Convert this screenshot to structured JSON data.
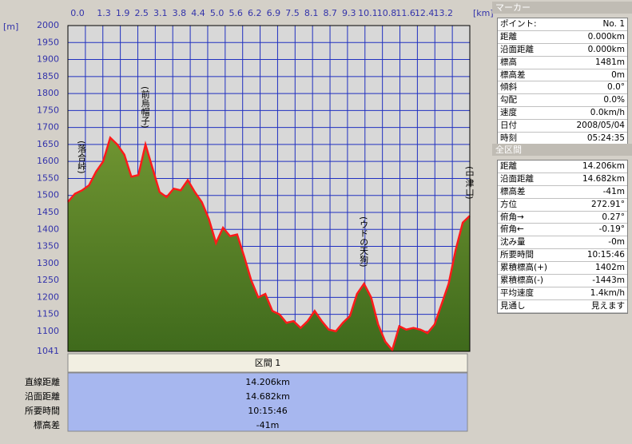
{
  "chart_data": {
    "type": "area",
    "y_unit": "[m]",
    "x_unit": "[km]",
    "x_labels": [
      "0.0",
      "1.3",
      "1.9",
      "2.5",
      "3.1",
      "3.8",
      "4.4",
      "5.0",
      "5.6",
      "6.2",
      "6.9",
      "7.5",
      "8.1",
      "8.7",
      "9.3",
      "10.1",
      "10.8",
      "11.6",
      "12.4",
      "13.2"
    ],
    "values": [
      1481,
      1505,
      1515,
      1530,
      1570,
      1600,
      1670,
      1650,
      1620,
      1555,
      1560,
      1650,
      1580,
      1510,
      1495,
      1520,
      1515,
      1545,
      1510,
      1480,
      1430,
      1360,
      1405,
      1380,
      1385,
      1320,
      1250,
      1200,
      1210,
      1160,
      1150,
      1125,
      1130,
      1110,
      1130,
      1160,
      1130,
      1105,
      1100,
      1125,
      1145,
      1210,
      1240,
      1200,
      1120,
      1070,
      1045,
      1115,
      1105,
      1110,
      1105,
      1095,
      1120,
      1180,
      1240,
      1340,
      1420,
      1440
    ],
    "ylim": [
      1041,
      2000
    ],
    "yticks": [
      2000,
      1950,
      1900,
      1850,
      1800,
      1750,
      1700,
      1650,
      1600,
      1550,
      1500,
      1450,
      1400,
      1350,
      1300,
      1250,
      1200,
      1150,
      1100,
      1041
    ],
    "grid": true,
    "color": "#6f9431",
    "line_color": "#ff1a1a",
    "annotations": [
      {
        "text": "(落合峠)",
        "index": 2
      },
      {
        "text": "(前烏帽子)",
        "index": 11
      },
      {
        "text": "(ウドの天狗)",
        "index": 42
      },
      {
        "text": "(中津山)",
        "index": 57
      }
    ]
  },
  "section": {
    "title": "区間 1",
    "rows": [
      [
        "直線距離",
        "14.206km"
      ],
      [
        "沿面距離",
        "14.682km"
      ],
      [
        "所要時間",
        "10:15:46"
      ],
      [
        "標高差",
        "-41m"
      ]
    ]
  },
  "marker": {
    "title": "マーカー",
    "rows": [
      [
        "ポイント:",
        "No. 1"
      ],
      [
        "距離",
        "0.000km"
      ],
      [
        "沿面距離",
        "0.000km"
      ],
      [
        "標高",
        "1481m"
      ],
      [
        "標高差",
        "0m"
      ],
      [
        "傾斜",
        "0.0°"
      ],
      [
        "勾配",
        "0.0%"
      ],
      [
        "速度",
        "0.0km/h"
      ],
      [
        "日付",
        "2008/05/04"
      ],
      [
        "時刻",
        "05:24:35"
      ]
    ]
  },
  "total": {
    "title": "全区間",
    "rows": [
      [
        "距離",
        "14.206km"
      ],
      [
        "沿面距離",
        "14.682km"
      ],
      [
        "標高差",
        "-41m"
      ],
      [
        "方位",
        "272.91°"
      ],
      [
        "俯角→",
        "0.27°"
      ],
      [
        "俯角←",
        "-0.19°"
      ],
      [
        "沈み量",
        "-0m"
      ],
      [
        "所要時間",
        "10:15:46"
      ],
      [
        "累積標高(+)",
        "1402m"
      ],
      [
        "累積標高(-)",
        "-1443m"
      ],
      [
        "平均速度",
        "1.4km/h"
      ],
      [
        "見通し",
        "見えます"
      ]
    ]
  }
}
